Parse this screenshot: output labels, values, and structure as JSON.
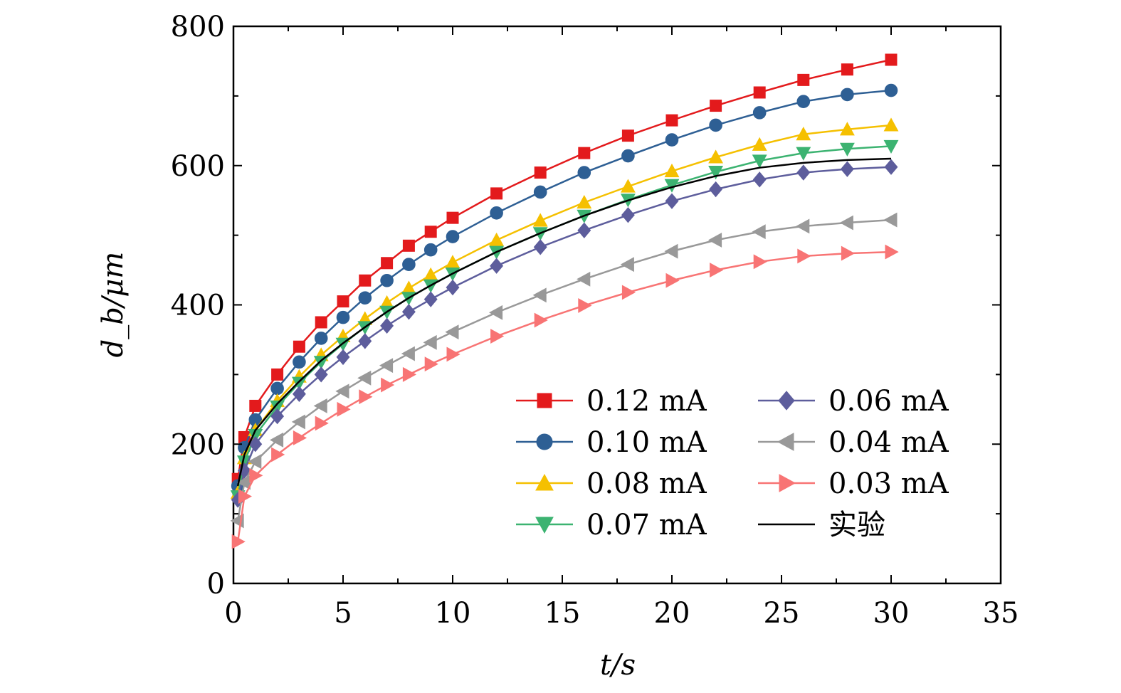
{
  "chart_data": {
    "type": "line",
    "xlabel": "t/s",
    "ylabel": "d_b/μm",
    "xlim": [
      0,
      35
    ],
    "ylim": [
      0,
      800
    ],
    "x_ticks": [
      "0",
      "5",
      "10",
      "15",
      "20",
      "25",
      "30",
      "35"
    ],
    "y_ticks": [
      "0",
      "200",
      "400",
      "600",
      "800"
    ],
    "grid": false,
    "legend_position": "bottom-right",
    "x": [
      0.2,
      0.5,
      1,
      2,
      3,
      4,
      5,
      6,
      7,
      8,
      9,
      10,
      12,
      14,
      16,
      18,
      20,
      22,
      24,
      26,
      28,
      30
    ],
    "series": [
      {
        "name": "0.12 mA",
        "color": "#e31a1c",
        "marker": "square",
        "values": [
          150,
          210,
          255,
          300,
          340,
          375,
          405,
          435,
          460,
          485,
          505,
          525,
          560,
          590,
          618,
          643,
          665,
          686,
          705,
          723,
          738,
          752
        ]
      },
      {
        "name": "0.10 mA",
        "color": "#2e5f94",
        "marker": "circle",
        "values": [
          140,
          195,
          235,
          280,
          318,
          352,
          382,
          410,
          435,
          458,
          479,
          498,
          532,
          562,
          590,
          614,
          637,
          658,
          676,
          692,
          702,
          708
        ]
      },
      {
        "name": "0.08 mA",
        "color": "#f5c000",
        "marker": "triangle-up",
        "values": [
          130,
          180,
          220,
          262,
          297,
          328,
          355,
          380,
          403,
          424,
          443,
          461,
          493,
          521,
          547,
          570,
          592,
          612,
          630,
          645,
          652,
          658
        ]
      },
      {
        "name": "0.07 mA",
        "color": "#3cb371",
        "marker": "triangle-down",
        "values": [
          125,
          175,
          213,
          254,
          288,
          318,
          344,
          368,
          390,
          410,
          428,
          445,
          476,
          503,
          528,
          551,
          572,
          591,
          607,
          618,
          624,
          628
        ]
      },
      {
        "name": "0.06 mA",
        "color": "#5d5d9c",
        "marker": "diamond",
        "values": [
          120,
          162,
          200,
          240,
          272,
          300,
          325,
          348,
          370,
          390,
          408,
          425,
          456,
          483,
          507,
          529,
          549,
          566,
          580,
          590,
          595,
          598
        ]
      },
      {
        "name": "0.04 mA",
        "color": "#999999",
        "marker": "triangle-left",
        "values": [
          90,
          145,
          175,
          206,
          232,
          255,
          276,
          295,
          313,
          330,
          346,
          361,
          389,
          414,
          437,
          458,
          477,
          493,
          505,
          513,
          518,
          522
        ]
      },
      {
        "name": "0.03 mA",
        "color": "#f87474",
        "marker": "triangle-right",
        "values": [
          60,
          125,
          155,
          185,
          209,
          230,
          250,
          268,
          285,
          300,
          315,
          329,
          355,
          378,
          399,
          418,
          435,
          450,
          462,
          470,
          474,
          476
        ]
      },
      {
        "name": "实验",
        "color": "#000000",
        "marker": "none",
        "values": [
          140,
          185,
          220,
          258,
          290,
          320,
          345,
          368,
          390,
          410,
          428,
          445,
          476,
          503,
          528,
          550,
          569,
          585,
          597,
          604,
          608,
          610
        ]
      }
    ]
  }
}
